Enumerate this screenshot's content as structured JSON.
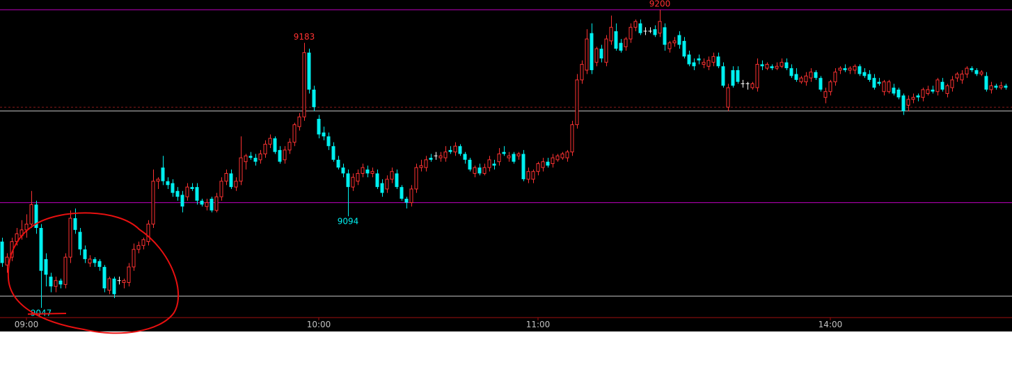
{
  "chart_data": {
    "type": "candlestick",
    "up_color": "#ff3232",
    "down_color": "#00f0f0",
    "flat_color": "#ffffff",
    "background": "#000000",
    "ylim": [
      9042,
      9205
    ],
    "xlim": [
      -0.43,
      207.29
    ],
    "xticks": [
      {
        "value": 5,
        "label": "09:00"
      },
      {
        "value": 65,
        "label": "10:00"
      },
      {
        "value": 110,
        "label": "11:00"
      },
      {
        "value": 170,
        "label": "14:00"
      }
    ],
    "hlines": [
      {
        "value": 9200,
        "color": "#c000c0"
      },
      {
        "value": 9101,
        "color": "#c000c0"
      },
      {
        "value": 9148,
        "color": "#c8c8c8"
      },
      {
        "value": 9053,
        "color": "#c8c8c8"
      },
      {
        "value": 9150,
        "color": "#8b1a1a",
        "dashed": true
      }
    ],
    "annotations": [
      {
        "x": 62,
        "value": 9183,
        "color": "#ff3232",
        "pos": "above"
      },
      {
        "x": 135,
        "value": 9200,
        "color": "#ff3232",
        "pos": "above"
      },
      {
        "x": 71,
        "value": 9094,
        "color": "#00f0f0",
        "pos": "below"
      },
      {
        "x": 8,
        "value": 9047,
        "color": "#00f0f0",
        "pos": "below"
      }
    ],
    "values": [
      [
        9081,
        9083,
        9068,
        9070
      ],
      [
        9069,
        9075,
        9065,
        9073
      ],
      [
        9073,
        9083,
        9071,
        9081
      ],
      [
        9081,
        9088,
        9079,
        9085
      ],
      [
        9084,
        9092,
        9082,
        9087
      ],
      [
        9087,
        9095,
        9083,
        9090
      ],
      [
        9090,
        9107,
        9088,
        9100
      ],
      [
        9100,
        9102,
        9085,
        9088
      ],
      [
        9088,
        9090,
        9047,
        9066
      ],
      [
        9072,
        9075,
        9058,
        9064
      ],
      [
        9063,
        9065,
        9055,
        9058
      ],
      [
        9058,
        9063,
        9055,
        9061
      ],
      [
        9061,
        9062,
        9057,
        9059
      ],
      [
        9059,
        9075,
        9057,
        9073
      ],
      [
        9073,
        9097,
        9070,
        9093
      ],
      [
        9093,
        9098,
        9085,
        9087
      ],
      [
        9086,
        9088,
        9074,
        9077
      ],
      [
        9077,
        9079,
        9070,
        9072
      ],
      [
        9070,
        9074,
        9068,
        9072
      ],
      [
        9072,
        9073,
        9068,
        9070
      ],
      [
        9071,
        9072,
        9066,
        9068
      ],
      [
        9068,
        9069,
        9055,
        9057
      ],
      [
        9056,
        9063,
        9054,
        9062
      ],
      [
        9062,
        9063,
        9052,
        9054
      ],
      [
        9061,
        9063,
        9059,
        9061
      ],
      [
        9060,
        9062,
        9057,
        9061
      ],
      [
        9060,
        9070,
        9058,
        9068
      ],
      [
        9068,
        9080,
        9066,
        9077
      ],
      [
        9077,
        9081,
        9075,
        9079
      ],
      [
        9079,
        9083,
        9077,
        9082
      ],
      [
        9081,
        9092,
        9079,
        9090
      ],
      [
        9090,
        9118,
        9088,
        9112
      ],
      [
        9112,
        9114,
        9108,
        9113
      ],
      [
        9119,
        9125,
        9110,
        9112
      ],
      [
        9112,
        9114,
        9108,
        9110
      ],
      [
        9111,
        9113,
        9104,
        9106
      ],
      [
        9107,
        9109,
        9102,
        9104
      ],
      [
        9105,
        9107,
        9096,
        9099
      ],
      [
        9104,
        9111,
        9102,
        9109
      ],
      [
        9109,
        9111,
        9107,
        9108
      ],
      [
        9109,
        9111,
        9100,
        9102
      ],
      [
        9102,
        9103,
        9099,
        9100
      ],
      [
        9099,
        9103,
        9097,
        9101
      ],
      [
        9103,
        9104,
        9096,
        9097
      ],
      [
        9097,
        9106,
        9096,
        9104
      ],
      [
        9104,
        9114,
        9102,
        9112
      ],
      [
        9112,
        9118,
        9110,
        9116
      ],
      [
        9116,
        9118,
        9108,
        9109
      ],
      [
        9109,
        9114,
        9107,
        9112
      ],
      [
        9112,
        9135,
        9110,
        9124
      ],
      [
        9122,
        9126,
        9118,
        9125
      ],
      [
        9125,
        9127,
        9123,
        9124
      ],
      [
        9124,
        9126,
        9120,
        9122
      ],
      [
        9123,
        9128,
        9121,
        9126
      ],
      [
        9126,
        9133,
        9124,
        9131
      ],
      [
        9131,
        9136,
        9129,
        9134
      ],
      [
        9134,
        9135,
        9126,
        9127
      ],
      [
        9128,
        9130,
        9121,
        9122
      ],
      [
        9123,
        9130,
        9121,
        9128
      ],
      [
        9128,
        9134,
        9126,
        9132
      ],
      [
        9132,
        9142,
        9130,
        9141
      ],
      [
        9140,
        9147,
        9138,
        9145
      ],
      [
        9145,
        9183,
        9143,
        9178
      ],
      [
        9178,
        9180,
        9157,
        9159
      ],
      [
        9159,
        9161,
        9148,
        9150
      ],
      [
        9144,
        9146,
        9134,
        9136
      ],
      [
        9137,
        9140,
        9133,
        9135
      ],
      [
        9135,
        9137,
        9128,
        9130
      ],
      [
        9130,
        9132,
        9122,
        9123
      ],
      [
        9123,
        9125,
        9118,
        9119
      ],
      [
        9119,
        9121,
        9114,
        9116
      ],
      [
        9116,
        9118,
        9094,
        9109
      ],
      [
        9109,
        9116,
        9107,
        9114
      ],
      [
        9112,
        9118,
        9110,
        9116
      ],
      [
        9116,
        9121,
        9114,
        9119
      ],
      [
        9118,
        9120,
        9114,
        9116
      ],
      [
        9116,
        9119,
        9114,
        9117
      ],
      [
        9116,
        9118,
        9108,
        9109
      ],
      [
        9111,
        9113,
        9104,
        9106
      ],
      [
        9108,
        9115,
        9106,
        9113
      ],
      [
        9113,
        9119,
        9111,
        9117
      ],
      [
        9116,
        9118,
        9108,
        9109
      ],
      [
        9109,
        9110,
        9102,
        9103
      ],
      [
        9103,
        9104,
        9098,
        9101
      ],
      [
        9101,
        9110,
        9099,
        9108
      ],
      [
        9108,
        9121,
        9106,
        9119
      ],
      [
        9119,
        9123,
        9117,
        9120
      ],
      [
        9119,
        9125,
        9117,
        9123
      ],
      [
        9124,
        9126,
        9122,
        9123
      ],
      [
        9125,
        9127,
        9123,
        9125
      ],
      [
        9124,
        9127,
        9122,
        9125
      ],
      [
        9124,
        9130,
        9122,
        9127
      ],
      [
        9128,
        9130,
        9126,
        9127
      ],
      [
        9127,
        9132,
        9125,
        9130
      ],
      [
        9130,
        9131,
        9125,
        9126
      ],
      [
        9126,
        9127,
        9121,
        9123
      ],
      [
        9123,
        9124,
        9117,
        9118
      ],
      [
        9116,
        9120,
        9114,
        9119
      ],
      [
        9119,
        9121,
        9115,
        9116
      ],
      [
        9116,
        9121,
        9115,
        9119
      ],
      [
        9119,
        9125,
        9117,
        9123
      ],
      [
        9121,
        9123,
        9118,
        9120
      ],
      [
        9122,
        9129,
        9120,
        9126
      ],
      [
        9127,
        9130,
        9125,
        9126
      ],
      [
        9124,
        9127,
        9122,
        9125
      ],
      [
        9126,
        9127,
        9121,
        9122
      ],
      [
        9125,
        9127,
        9123,
        9126
      ],
      [
        9126,
        9128,
        9112,
        9113
      ],
      [
        9113,
        9119,
        9111,
        9117
      ],
      [
        9113,
        9118,
        9111,
        9117
      ],
      [
        9117,
        9122,
        9115,
        9121
      ],
      [
        9119,
        9124,
        9117,
        9122
      ],
      [
        9122,
        9124,
        9119,
        9120
      ],
      [
        9121,
        9126,
        9119,
        9124
      ],
      [
        9123,
        9126,
        9122,
        9125
      ],
      [
        9124,
        9127,
        9123,
        9126
      ],
      [
        9124,
        9128,
        9122,
        9127
      ],
      [
        9127,
        9143,
        9125,
        9141
      ],
      [
        9141,
        9167,
        9139,
        9164
      ],
      [
        9164,
        9174,
        9162,
        9172
      ],
      [
        9169,
        9190,
        9167,
        9185
      ],
      [
        9188,
        9193,
        9167,
        9169
      ],
      [
        9173,
        9181,
        9171,
        9180
      ],
      [
        9180,
        9182,
        9173,
        9175
      ],
      [
        9173,
        9187,
        9171,
        9185
      ],
      [
        9184,
        9197,
        9182,
        9191
      ],
      [
        9189,
        9193,
        9179,
        9180
      ],
      [
        9183,
        9185,
        9178,
        9179
      ],
      [
        9181,
        9186,
        9179,
        9185
      ],
      [
        9185,
        9193,
        9183,
        9191
      ],
      [
        9191,
        9195,
        9189,
        9194
      ],
      [
        9193,
        9195,
        9187,
        9188
      ],
      [
        9189,
        9191,
        9187,
        9189
      ],
      [
        9189,
        9191,
        9188,
        9189
      ],
      [
        9190,
        9192,
        9186,
        9187
      ],
      [
        9188,
        9200,
        9186,
        9194
      ],
      [
        9191,
        9193,
        9179,
        9182
      ],
      [
        9180,
        9184,
        9178,
        9183
      ],
      [
        9183,
        9186,
        9181,
        9184
      ],
      [
        9187,
        9189,
        9180,
        9182
      ],
      [
        9184,
        9186,
        9175,
        9176
      ],
      [
        9177,
        9179,
        9171,
        9172
      ],
      [
        9173,
        9175,
        9169,
        9171
      ],
      [
        9175,
        9177,
        9172,
        9174
      ],
      [
        9172,
        9175,
        9170,
        9173
      ],
      [
        9171,
        9176,
        9169,
        9174
      ],
      [
        9173,
        9178,
        9171,
        9176
      ],
      [
        9176,
        9178,
        9170,
        9171
      ],
      [
        9171,
        9173,
        9160,
        9161
      ],
      [
        9150,
        9162,
        9148,
        9160
      ],
      [
        9169,
        9171,
        9160,
        9161
      ],
      [
        9169,
        9171,
        9162,
        9163
      ],
      [
        9162,
        9164,
        9160,
        9162
      ],
      [
        9162,
        9163,
        9159,
        9162
      ],
      [
        9160,
        9163,
        9159,
        9162
      ],
      [
        9160,
        9175,
        9158,
        9172
      ],
      [
        9172,
        9174,
        9169,
        9171
      ],
      [
        9170,
        9173,
        9169,
        9172
      ],
      [
        9171,
        9172,
        9169,
        9170
      ],
      [
        9170,
        9173,
        9169,
        9171
      ],
      [
        9171,
        9175,
        9170,
        9173
      ],
      [
        9173,
        9175,
        9169,
        9170
      ],
      [
        9170,
        9172,
        9165,
        9166
      ],
      [
        9167,
        9170,
        9163,
        9164
      ],
      [
        9163,
        9166,
        9162,
        9165
      ],
      [
        9163,
        9168,
        9161,
        9166
      ],
      [
        9165,
        9170,
        9163,
        9168
      ],
      [
        9168,
        9169,
        9164,
        9165
      ],
      [
        9165,
        9166,
        9158,
        9159
      ],
      [
        9155,
        9160,
        9152,
        9158
      ],
      [
        9158,
        9164,
        9156,
        9163
      ],
      [
        9163,
        9170,
        9161,
        9168
      ],
      [
        9169,
        9171,
        9167,
        9170
      ],
      [
        9170,
        9172,
        9168,
        9169
      ],
      [
        9169,
        9171,
        9167,
        9170
      ],
      [
        9169,
        9172,
        9167,
        9171
      ],
      [
        9171,
        9172,
        9166,
        9167
      ],
      [
        9168,
        9170,
        9165,
        9166
      ],
      [
        9167,
        9169,
        9163,
        9164
      ],
      [
        9165,
        9167,
        9159,
        9160
      ],
      [
        9163,
        9165,
        9161,
        9162
      ],
      [
        9158,
        9164,
        9156,
        9163
      ],
      [
        9158,
        9164,
        9157,
        9163
      ],
      [
        9160,
        9162,
        9156,
        9157
      ],
      [
        9159,
        9160,
        9154,
        9155
      ],
      [
        9156,
        9157,
        9146,
        9148
      ],
      [
        9151,
        9156,
        9148,
        9154
      ],
      [
        9154,
        9157,
        9152,
        9155
      ],
      [
        9156,
        9157,
        9153,
        9155
      ],
      [
        9155,
        9160,
        9153,
        9159
      ],
      [
        9157,
        9161,
        9156,
        9159
      ],
      [
        9159,
        9161,
        9157,
        9158
      ],
      [
        9158,
        9165,
        9156,
        9164
      ],
      [
        9163,
        9165,
        9158,
        9159
      ],
      [
        9157,
        9162,
        9155,
        9161
      ],
      [
        9160,
        9166,
        9158,
        9164
      ],
      [
        9165,
        9168,
        9163,
        9167
      ],
      [
        9164,
        9169,
        9162,
        9167
      ],
      [
        9167,
        9171,
        9165,
        9170
      ],
      [
        9170,
        9171,
        9168,
        9169
      ],
      [
        9169,
        9170,
        9166,
        9167
      ],
      [
        9167,
        9169,
        9166,
        9168
      ],
      [
        9166,
        9168,
        9158,
        9159
      ],
      [
        9159,
        9163,
        9157,
        9161
      ],
      [
        9161,
        9162,
        9159,
        9160
      ],
      [
        9160,
        9163,
        9159,
        9161
      ],
      [
        9161,
        9162,
        9159,
        9160
      ]
    ]
  }
}
